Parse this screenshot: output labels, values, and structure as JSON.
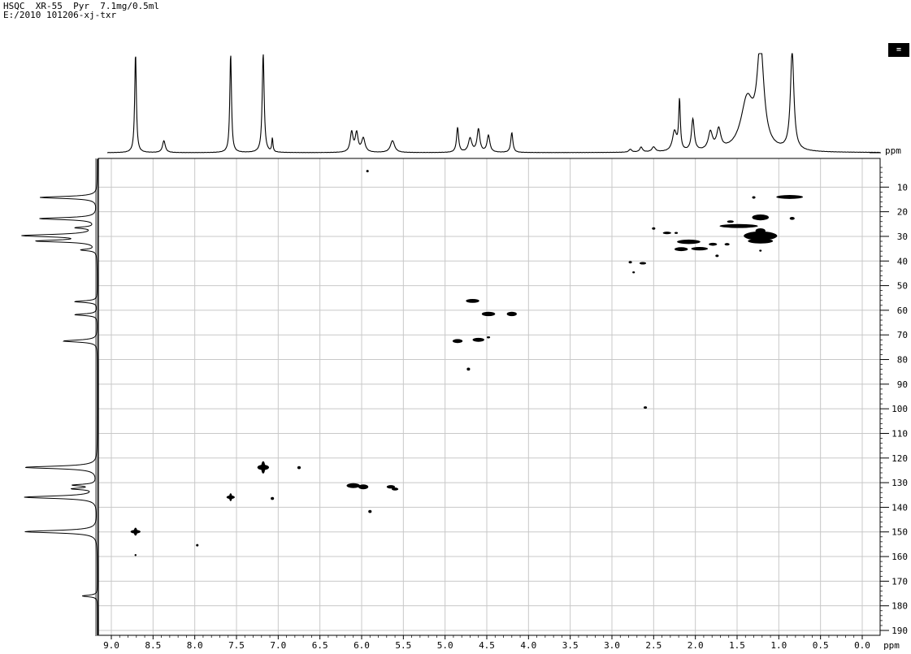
{
  "header": {
    "line1": "HSQC  XR-55  Pyr  7.1mg/0.5ml",
    "line2": "E:/2010 101206-xj-txr"
  },
  "badge_label": "=",
  "chart_data": {
    "type": "scatter",
    "subtype": "2D HSQC NMR spectrum",
    "x_axis": {
      "unit_label": "ppm",
      "range": [
        9.0,
        0.0
      ],
      "reversed": true,
      "ticks": [
        "9.0",
        "8.5",
        "8.0",
        "7.5",
        "7.0",
        "6.5",
        "6.0",
        "5.5",
        "5.0",
        "4.5",
        "4.0",
        "3.5",
        "3.0",
        "2.5",
        "2.0",
        "1.5",
        "1.0",
        "0.5",
        "0.0"
      ]
    },
    "y_axis": {
      "unit_label": "ppm",
      "range": [
        0,
        190
      ],
      "position": "right",
      "ticks": [
        "10",
        "20",
        "30",
        "40",
        "50",
        "60",
        "70",
        "80",
        "90",
        "100",
        "110",
        "120",
        "130",
        "140",
        "150",
        "160",
        "170",
        "180",
        "190"
      ]
    },
    "grid": true,
    "top_projection": {
      "description": "1H spectrum",
      "peaks": [
        {
          "x": 8.71,
          "h": 1.0,
          "w": 0.012
        },
        {
          "x": 8.37,
          "h": 0.12,
          "w": 0.02
        },
        {
          "x": 7.57,
          "h": 1.0,
          "w": 0.012
        },
        {
          "x": 7.18,
          "h": 1.0,
          "w": 0.014
        },
        {
          "x": 7.07,
          "h": 0.14,
          "w": 0.008
        },
        {
          "x": 6.12,
          "h": 0.2,
          "w": 0.02
        },
        {
          "x": 6.06,
          "h": 0.19,
          "w": 0.02
        },
        {
          "x": 5.98,
          "h": 0.14,
          "w": 0.025
        },
        {
          "x": 5.63,
          "h": 0.12,
          "w": 0.03
        },
        {
          "x": 4.85,
          "h": 0.25,
          "w": 0.015
        },
        {
          "x": 4.7,
          "h": 0.14,
          "w": 0.025
        },
        {
          "x": 4.6,
          "h": 0.23,
          "w": 0.02
        },
        {
          "x": 4.48,
          "h": 0.17,
          "w": 0.02
        },
        {
          "x": 4.2,
          "h": 0.2,
          "w": 0.015
        },
        {
          "x": 2.78,
          "h": 0.03,
          "w": 0.02
        },
        {
          "x": 2.65,
          "h": 0.05,
          "w": 0.02
        },
        {
          "x": 2.5,
          "h": 0.05,
          "w": 0.025
        },
        {
          "x": 2.25,
          "h": 0.2,
          "w": 0.03
        },
        {
          "x": 2.19,
          "h": 0.5,
          "w": 0.012
        },
        {
          "x": 2.03,
          "h": 0.32,
          "w": 0.02
        },
        {
          "x": 1.82,
          "h": 0.18,
          "w": 0.03
        },
        {
          "x": 1.72,
          "h": 0.2,
          "w": 0.03
        },
        {
          "x": 1.38,
          "h": 0.5,
          "w": 0.09
        },
        {
          "x": 1.22,
          "h": 1.0,
          "w": 0.05
        },
        {
          "x": 0.84,
          "h": 1.0,
          "w": 0.025
        }
      ]
    },
    "left_projection": {
      "description": "13C spectrum",
      "peaks": [
        {
          "y": 14.2,
          "h": 0.75,
          "w": 0.5
        },
        {
          "y": 22.8,
          "h": 0.75,
          "w": 0.5
        },
        {
          "y": 26.5,
          "h": 0.25,
          "w": 0.4
        },
        {
          "y": 29.7,
          "h": 0.95,
          "w": 0.6
        },
        {
          "y": 31.9,
          "h": 0.75,
          "w": 0.5
        },
        {
          "y": 35.5,
          "h": 0.2,
          "w": 0.4
        },
        {
          "y": 56.5,
          "h": 0.3,
          "w": 0.4
        },
        {
          "y": 61.8,
          "h": 0.3,
          "w": 0.4
        },
        {
          "y": 72.5,
          "h": 0.45,
          "w": 0.5
        },
        {
          "y": 123.8,
          "h": 0.95,
          "w": 0.6
        },
        {
          "y": 131.0,
          "h": 0.3,
          "w": 0.4
        },
        {
          "y": 132.5,
          "h": 0.3,
          "w": 0.4
        },
        {
          "y": 135.9,
          "h": 0.95,
          "w": 0.6
        },
        {
          "y": 149.9,
          "h": 0.95,
          "w": 0.6
        },
        {
          "y": 176.0,
          "h": 0.2,
          "w": 0.4
        }
      ]
    },
    "cross_peaks": [
      {
        "x": 8.71,
        "y": 149.9,
        "rx": 0.06,
        "ry": 1.3,
        "shape": "cross"
      },
      {
        "x": 7.57,
        "y": 135.9,
        "rx": 0.05,
        "ry": 1.3,
        "shape": "cross"
      },
      {
        "x": 7.18,
        "y": 123.8,
        "rx": 0.07,
        "ry": 2.0,
        "shape": "cross"
      },
      {
        "x": 7.07,
        "y": 136.4,
        "rx": 0.02,
        "ry": 0.6
      },
      {
        "x": 6.75,
        "y": 123.9,
        "rx": 0.02,
        "ry": 0.6
      },
      {
        "x": 6.1,
        "y": 131.2,
        "rx": 0.08,
        "ry": 1.0
      },
      {
        "x": 5.98,
        "y": 131.7,
        "rx": 0.06,
        "ry": 1.0
      },
      {
        "x": 5.65,
        "y": 131.7,
        "rx": 0.05,
        "ry": 0.7
      },
      {
        "x": 5.6,
        "y": 132.6,
        "rx": 0.04,
        "ry": 0.6
      },
      {
        "x": 5.9,
        "y": 141.7,
        "rx": 0.02,
        "ry": 0.6
      },
      {
        "x": 7.97,
        "y": 155.4,
        "rx": 0.015,
        "ry": 0.5
      },
      {
        "x": 8.71,
        "y": 159.4,
        "rx": 0.01,
        "ry": 0.4
      },
      {
        "x": 5.93,
        "y": 3.5,
        "rx": 0.015,
        "ry": 0.5
      },
      {
        "x": 4.67,
        "y": 56.2,
        "rx": 0.08,
        "ry": 0.8
      },
      {
        "x": 4.48,
        "y": 61.5,
        "rx": 0.08,
        "ry": 0.9
      },
      {
        "x": 4.2,
        "y": 61.5,
        "rx": 0.06,
        "ry": 0.9
      },
      {
        "x": 4.85,
        "y": 72.5,
        "rx": 0.06,
        "ry": 0.8
      },
      {
        "x": 4.6,
        "y": 72.0,
        "rx": 0.07,
        "ry": 0.8
      },
      {
        "x": 4.48,
        "y": 71.0,
        "rx": 0.02,
        "ry": 0.4
      },
      {
        "x": 4.72,
        "y": 83.9,
        "rx": 0.02,
        "ry": 0.6
      },
      {
        "x": 2.6,
        "y": 99.5,
        "rx": 0.02,
        "ry": 0.5
      },
      {
        "x": 2.78,
        "y": 40.5,
        "rx": 0.02,
        "ry": 0.5
      },
      {
        "x": 2.63,
        "y": 40.9,
        "rx": 0.04,
        "ry": 0.5
      },
      {
        "x": 2.74,
        "y": 44.6,
        "rx": 0.015,
        "ry": 0.4
      },
      {
        "x": 2.5,
        "y": 26.8,
        "rx": 0.02,
        "ry": 0.5
      },
      {
        "x": 2.34,
        "y": 28.6,
        "rx": 0.05,
        "ry": 0.5
      },
      {
        "x": 2.23,
        "y": 28.6,
        "rx": 0.02,
        "ry": 0.4
      },
      {
        "x": 2.08,
        "y": 32.2,
        "rx": 0.14,
        "ry": 0.9
      },
      {
        "x": 2.17,
        "y": 35.2,
        "rx": 0.08,
        "ry": 0.8
      },
      {
        "x": 1.95,
        "y": 35.0,
        "rx": 0.1,
        "ry": 0.7
      },
      {
        "x": 1.79,
        "y": 33.2,
        "rx": 0.05,
        "ry": 0.6
      },
      {
        "x": 1.62,
        "y": 33.2,
        "rx": 0.03,
        "ry": 0.5
      },
      {
        "x": 1.74,
        "y": 37.9,
        "rx": 0.02,
        "ry": 0.5
      },
      {
        "x": 1.48,
        "y": 25.8,
        "rx": 0.23,
        "ry": 0.8
      },
      {
        "x": 1.58,
        "y": 24.0,
        "rx": 0.04,
        "ry": 0.5
      },
      {
        "x": 1.22,
        "y": 22.3,
        "rx": 0.1,
        "ry": 1.2
      },
      {
        "x": 1.3,
        "y": 14.2,
        "rx": 0.02,
        "ry": 0.5
      },
      {
        "x": 1.22,
        "y": 29.8,
        "rx": 0.2,
        "ry": 1.8
      },
      {
        "x": 1.22,
        "y": 31.9,
        "rx": 0.15,
        "ry": 1.0
      },
      {
        "x": 1.22,
        "y": 27.8,
        "rx": 0.06,
        "ry": 1.1
      },
      {
        "x": 1.22,
        "y": 35.8,
        "rx": 0.015,
        "ry": 0.4
      },
      {
        "x": 0.87,
        "y": 14.0,
        "rx": 0.16,
        "ry": 0.8
      },
      {
        "x": 0.84,
        "y": 22.7,
        "rx": 0.03,
        "ry": 0.6
      }
    ]
  }
}
